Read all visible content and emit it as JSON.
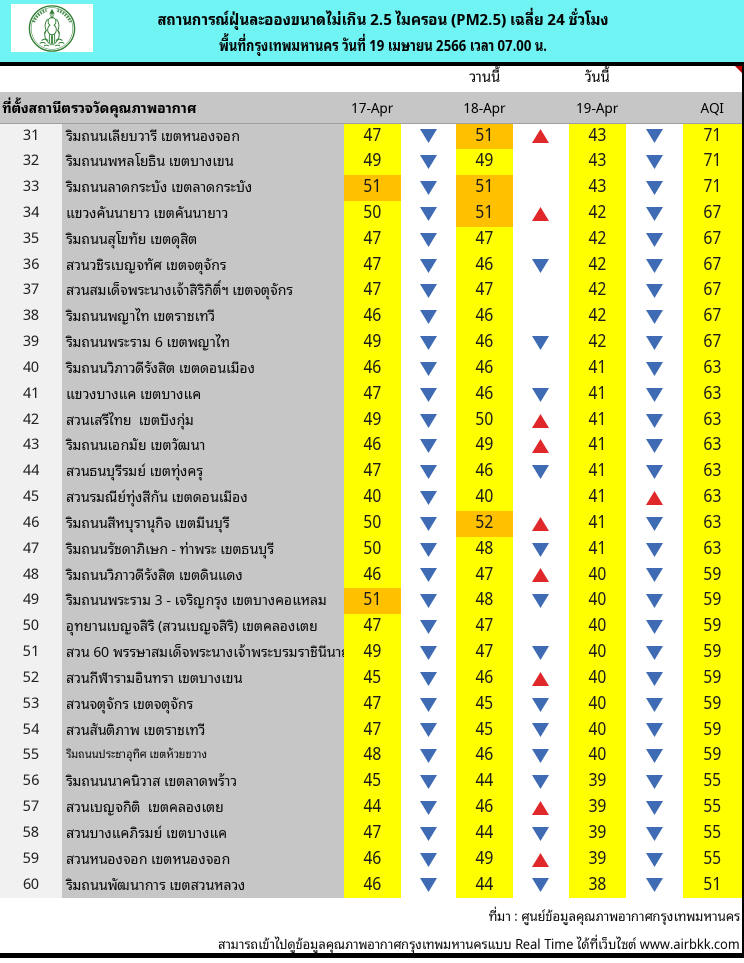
{
  "header": {
    "title_line1": "สถานการณ์ฝุ่นละอองขนาดไม่เกิน 2.5 ไมครอน (PM2.5) เฉลี่ย 24 ชั่วโมง",
    "title_line2": "พื้นที่กรุงเทพมหานคร วันที่ 19 เมษายน 2566 เวลา 07.00 น.",
    "logo": "bma-seal"
  },
  "group_labels": {
    "yesterday": "วานนี้",
    "today": "วันนี้"
  },
  "table": {
    "columns": {
      "station": "ที่ตั้งสถานีตรวจวัดคุณภาพอากาศ",
      "d17": "17-Apr",
      "d18": "18-Apr",
      "d19": "19-Apr",
      "aqi": "AQI"
    },
    "rows": [
      {
        "no": 31,
        "station": "ริมถนนเลียบวารี เขตหนองจอก",
        "v17": 47,
        "c17": "y",
        "a1": "down",
        "v18": 51,
        "c18": "o",
        "a2": "up",
        "v19": 43,
        "a3": "down",
        "aqi": 71,
        "small": false
      },
      {
        "no": 32,
        "station": "ริมถนนพหลโยธิน เขตบางเขน",
        "v17": 49,
        "c17": "y",
        "a1": "down",
        "v18": 49,
        "c18": "y",
        "a2": "none",
        "v19": 43,
        "a3": "down",
        "aqi": 71,
        "small": false
      },
      {
        "no": 33,
        "station": "ริมถนนลาดกระบัง เขตลาดกระบัง",
        "v17": 51,
        "c17": "o",
        "a1": "down",
        "v18": 51,
        "c18": "o",
        "a2": "none",
        "v19": 43,
        "a3": "down",
        "aqi": 71,
        "small": false
      },
      {
        "no": 34,
        "station": "แขวงคันนายาว เขตคันนายาว",
        "v17": 50,
        "c17": "y",
        "a1": "down",
        "v18": 51,
        "c18": "o",
        "a2": "up",
        "v19": 42,
        "a3": "down",
        "aqi": 67,
        "small": false
      },
      {
        "no": 35,
        "station": "ริมถนนสุโขทัย เขตดุสิต",
        "v17": 47,
        "c17": "y",
        "a1": "down",
        "v18": 47,
        "c18": "y",
        "a2": "none",
        "v19": 42,
        "a3": "down",
        "aqi": 67,
        "small": false
      },
      {
        "no": 36,
        "station": "สวนวชิรเบญจทัศ เขตจตุจักร",
        "v17": 47,
        "c17": "y",
        "a1": "down",
        "v18": 46,
        "c18": "y",
        "a2": "down",
        "v19": 42,
        "a3": "down",
        "aqi": 67,
        "small": false
      },
      {
        "no": 37,
        "station": "สวนสมเด็จพระนางเจ้าสิริกิติ์ฯ เขตจตุจักร",
        "v17": 47,
        "c17": "y",
        "a1": "down",
        "v18": 47,
        "c18": "y",
        "a2": "none",
        "v19": 42,
        "a3": "down",
        "aqi": 67,
        "small": false
      },
      {
        "no": 38,
        "station": "ริมถนนพญาไท เขตราชเทวี",
        "v17": 46,
        "c17": "y",
        "a1": "down",
        "v18": 46,
        "c18": "y",
        "a2": "none",
        "v19": 42,
        "a3": "down",
        "aqi": 67,
        "small": false
      },
      {
        "no": 39,
        "station": "ริมถนนพระราม 6 เขตพญาไท",
        "v17": 49,
        "c17": "y",
        "a1": "down",
        "v18": 46,
        "c18": "y",
        "a2": "down",
        "v19": 42,
        "a3": "down",
        "aqi": 67,
        "small": false
      },
      {
        "no": 40,
        "station": "ริมถนนวิภาวดีรังสิต เขตดอนเมือง",
        "v17": 46,
        "c17": "y",
        "a1": "down",
        "v18": 46,
        "c18": "y",
        "a2": "none",
        "v19": 41,
        "a3": "down",
        "aqi": 63,
        "small": false
      },
      {
        "no": 41,
        "station": "แขวงบางแค เขตบางแค",
        "v17": 47,
        "c17": "y",
        "a1": "down",
        "v18": 46,
        "c18": "y",
        "a2": "down",
        "v19": 41,
        "a3": "down",
        "aqi": 63,
        "small": false
      },
      {
        "no": 42,
        "station": "สวนเสรีไทย  เขตบึงกุ่ม",
        "v17": 49,
        "c17": "y",
        "a1": "down",
        "v18": 50,
        "c18": "y",
        "a2": "up",
        "v19": 41,
        "a3": "down",
        "aqi": 63,
        "small": false
      },
      {
        "no": 43,
        "station": "ริมถนนเอกมัย เขตวัฒนา",
        "v17": 46,
        "c17": "y",
        "a1": "down",
        "v18": 49,
        "c18": "y",
        "a2": "up",
        "v19": 41,
        "a3": "down",
        "aqi": 63,
        "small": false
      },
      {
        "no": 44,
        "station": "สวนธนบุรีรมย์ เขตทุ่งครุ",
        "v17": 47,
        "c17": "y",
        "a1": "down",
        "v18": 46,
        "c18": "y",
        "a2": "down",
        "v19": 41,
        "a3": "down",
        "aqi": 63,
        "small": false
      },
      {
        "no": 45,
        "station": "สวนรมณีย์ทุ่งสีกัน เขตดอนเมือง",
        "v17": 40,
        "c17": "y",
        "a1": "down",
        "v18": 40,
        "c18": "y",
        "a2": "none",
        "v19": 41,
        "a3": "up",
        "aqi": 63,
        "small": false
      },
      {
        "no": 46,
        "station": "ริมถนนสีหบุรานุกิจ เขตมีนบุรี",
        "v17": 50,
        "c17": "y",
        "a1": "down",
        "v18": 52,
        "c18": "o",
        "a2": "up",
        "v19": 41,
        "a3": "down",
        "aqi": 63,
        "small": false
      },
      {
        "no": 47,
        "station": "ริมถนนรัชดาภิเษก - ท่าพระ เขตธนบุรี",
        "v17": 50,
        "c17": "y",
        "a1": "down",
        "v18": 48,
        "c18": "y",
        "a2": "down",
        "v19": 41,
        "a3": "down",
        "aqi": 63,
        "small": false
      },
      {
        "no": 48,
        "station": "ริมถนนวิภาวดีรังสิต เขตดินแดง",
        "v17": 46,
        "c17": "y",
        "a1": "down",
        "v18": 47,
        "c18": "y",
        "a2": "up",
        "v19": 40,
        "a3": "down",
        "aqi": 59,
        "small": false
      },
      {
        "no": 49,
        "station": "ริมถนนพระราม 3 - เจริญกรุง เขตบางคอแหลม",
        "v17": 51,
        "c17": "o",
        "a1": "down",
        "v18": 48,
        "c18": "y",
        "a2": "down",
        "v19": 40,
        "a3": "down",
        "aqi": 59,
        "small": false
      },
      {
        "no": 50,
        "station": "อุทยานเบญจสิริ (สวนเบญจสิริ) เขตคลองเตย",
        "v17": 47,
        "c17": "y",
        "a1": "down",
        "v18": 47,
        "c18": "y",
        "a2": "none",
        "v19": 40,
        "a3": "down",
        "aqi": 59,
        "small": false
      },
      {
        "no": 51,
        "station": "สวน 60 พรรษาสมเด็จพระนางเจ้าพระบรมราชินีนาถ เ",
        "v17": 49,
        "c17": "y",
        "a1": "down",
        "v18": 47,
        "c18": "y",
        "a2": "down",
        "v19": 40,
        "a3": "down",
        "aqi": 59,
        "small": false
      },
      {
        "no": 52,
        "station": "สวนกีฬารามอินทรา เขตบางเขน",
        "v17": 45,
        "c17": "y",
        "a1": "down",
        "v18": 46,
        "c18": "y",
        "a2": "up",
        "v19": 40,
        "a3": "down",
        "aqi": 59,
        "small": false
      },
      {
        "no": 53,
        "station": "สวนจตุจักร เขตจตุจักร",
        "v17": 47,
        "c17": "y",
        "a1": "down",
        "v18": 45,
        "c18": "y",
        "a2": "down",
        "v19": 40,
        "a3": "down",
        "aqi": 59,
        "small": false
      },
      {
        "no": 54,
        "station": "สวนสันติภาพ เขตราชเทวี",
        "v17": 47,
        "c17": "y",
        "a1": "down",
        "v18": 45,
        "c18": "y",
        "a2": "down",
        "v19": 40,
        "a3": "down",
        "aqi": 59,
        "small": false
      },
      {
        "no": 55,
        "station": "ริมถนนประชาอุทิศ เขตห้วยขวาง",
        "v17": 48,
        "c17": "y",
        "a1": "down",
        "v18": 46,
        "c18": "y",
        "a2": "down",
        "v19": 40,
        "a3": "down",
        "aqi": 59,
        "small": true
      },
      {
        "no": 56,
        "station": "ริมถนนนาคนิวาส เขตลาดพร้าว",
        "v17": 45,
        "c17": "y",
        "a1": "down",
        "v18": 44,
        "c18": "y",
        "a2": "down",
        "v19": 39,
        "a3": "down",
        "aqi": 55,
        "small": false
      },
      {
        "no": 57,
        "station": "สวนเบญจกิติ  เขตคลองเตย",
        "v17": 44,
        "c17": "y",
        "a1": "down",
        "v18": 46,
        "c18": "y",
        "a2": "up",
        "v19": 39,
        "a3": "down",
        "aqi": 55,
        "small": false
      },
      {
        "no": 58,
        "station": "สวนบางแคภิรมย์ เขตบางแค",
        "v17": 47,
        "c17": "y",
        "a1": "down",
        "v18": 44,
        "c18": "y",
        "a2": "down",
        "v19": 39,
        "a3": "down",
        "aqi": 55,
        "small": false
      },
      {
        "no": 59,
        "station": "สวนหนองจอก เขตหนองจอก",
        "v17": 46,
        "c17": "y",
        "a1": "down",
        "v18": 49,
        "c18": "y",
        "a2": "up",
        "v19": 39,
        "a3": "down",
        "aqi": 55,
        "small": false
      },
      {
        "no": 60,
        "station": "ริมถนนพัฒนาการ เขตสวนหลวง",
        "v17": 46,
        "c17": "y",
        "a1": "down",
        "v18": 44,
        "c18": "y",
        "a2": "down",
        "v19": 38,
        "a3": "down",
        "aqi": 51,
        "small": false
      }
    ]
  },
  "footer": {
    "source": "ที่มา : ศูนย์ข้อมูลคุณภาพอากาศกรุงเทพมหานคร",
    "note": "สามารถเข้าไปดูข้อมูลคุณภาพอากาศกรุงเทพมหานครแบบ Real Time ได้ที่เว็บไซต์ www.airbkk.com"
  },
  "colors": {
    "band_cyan": "#6FF4F3",
    "yellow": "#FFFF00",
    "orange": "#FFC000",
    "gray_station": "#C6C6C6",
    "gray_light": "#F1F1F1",
    "arrow_up_red": "#E0282B",
    "arrow_down_blue": "#3E6BB4",
    "seal_green": "#2E7D32"
  }
}
